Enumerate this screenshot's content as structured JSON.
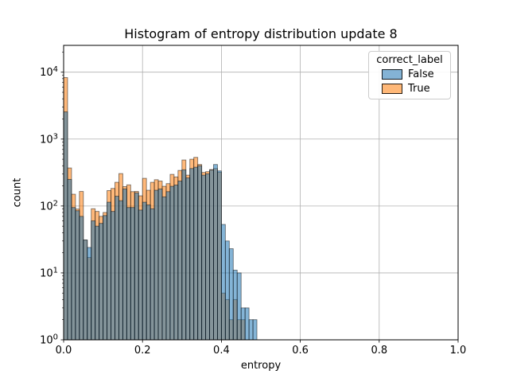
{
  "figure": {
    "title": "Histogram of entropy distribution update 8"
  },
  "chart_data": {
    "type": "bar",
    "subtype": "layered-histogram",
    "title": "Histogram of entropy distribution update 8",
    "xlabel": "entropy",
    "ylabel": "count",
    "xlim": [
      0.0,
      1.0
    ],
    "yscale": "log",
    "ylim_log_exponents": [
      0,
      4.4
    ],
    "grid": true,
    "x_tick_values": [
      0.0,
      0.2,
      0.4,
      0.6,
      0.8,
      1.0
    ],
    "x_tick_labels": [
      "0.0",
      "0.2",
      "0.4",
      "0.6",
      "0.8",
      "1.0"
    ],
    "y_tick_labels": [
      "10^0",
      "10^1",
      "10^2",
      "10^3",
      "10^4"
    ],
    "bin_start": 0.0,
    "bin_width": 0.01,
    "bar_alpha": 0.55,
    "grid_color": "#b0b0b0",
    "legend": {
      "title": "correct_label",
      "position": "upper-right",
      "entries": [
        {
          "label": "False",
          "color": "#1f77b4",
          "swatch_color": "#84b3d5"
        },
        {
          "label": "True",
          "color": "#ff7f0e",
          "swatch_color": "#ffb878"
        }
      ]
    },
    "series": [
      {
        "name": "False",
        "color": "#1f77b4",
        "values": [
          2550,
          250,
          95,
          85,
          70,
          31,
          24,
          60,
          50,
          55,
          72,
          114,
          83,
          140,
          120,
          180,
          95,
          95,
          157,
          87,
          114,
          104,
          91,
          172,
          180,
          137,
          164,
          197,
          206,
          236,
          348,
          263,
          363,
          380,
          400,
          289,
          303,
          345,
          417,
          335,
          53,
          30,
          23,
          11,
          10,
          3,
          3,
          2,
          2,
          0
        ]
      },
      {
        "name": "True",
        "color": "#ff7f0e",
        "values": [
          8300,
          370,
          150,
          90,
          165,
          31,
          17,
          91,
          83,
          70,
          80,
          170,
          183,
          226,
          305,
          195,
          207,
          164,
          165,
          142,
          259,
          172,
          226,
          247,
          236,
          197,
          216,
          297,
          272,
          340,
          487,
          289,
          500,
          533,
          417,
          317,
          326,
          350,
          363,
          320,
          5,
          4,
          2,
          4,
          2,
          2,
          0,
          0,
          0,
          0
        ]
      }
    ]
  }
}
